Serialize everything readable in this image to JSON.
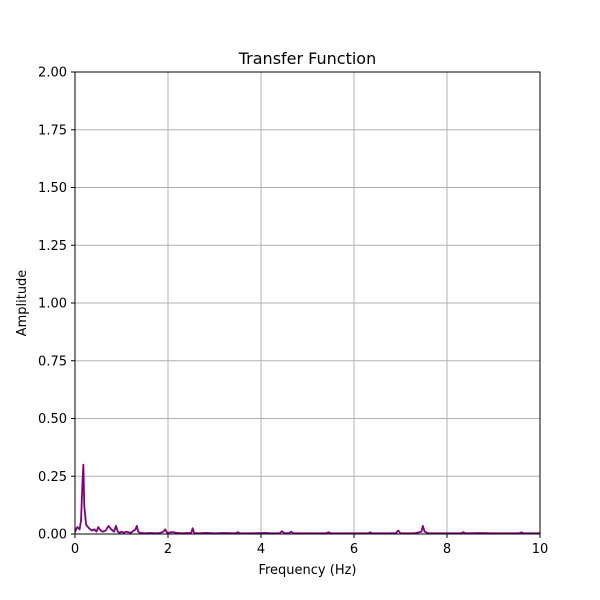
{
  "chart_data": {
    "type": "line",
    "title": "Transfer Function",
    "xlabel": "Frequency (Hz)",
    "ylabel": "Amplitude",
    "xlim": [
      0,
      10
    ],
    "ylim": [
      0,
      2
    ],
    "grid": true,
    "x_ticks": [
      0,
      2,
      4,
      6,
      8,
      10
    ],
    "x_tick_labels": [
      "0",
      "2",
      "4",
      "6",
      "8",
      "10"
    ],
    "y_ticks": [
      0,
      0.25,
      0.5,
      0.75,
      1.0,
      1.25,
      1.5,
      1.75,
      2.0
    ],
    "y_tick_labels": [
      "0.00",
      "0.25",
      "0.50",
      "0.75",
      "1.00",
      "1.25",
      "1.50",
      "1.75",
      "2.00"
    ],
    "series": [
      {
        "color": "#800080",
        "x": [
          0.0,
          0.05,
          0.1,
          0.13,
          0.16,
          0.18,
          0.2,
          0.24,
          0.3,
          0.36,
          0.42,
          0.46,
          0.5,
          0.55,
          0.6,
          0.66,
          0.72,
          0.78,
          0.84,
          0.88,
          0.92,
          0.96,
          1.0,
          1.05,
          1.1,
          1.2,
          1.3,
          1.33,
          1.36,
          1.4,
          1.5,
          1.6,
          1.8,
          1.9,
          1.94,
          1.98,
          2.1,
          2.2,
          2.3,
          2.4,
          2.5,
          2.53,
          2.56,
          2.65,
          2.8,
          3.0,
          3.2,
          3.45,
          3.5,
          3.55,
          3.8,
          4.1,
          4.2,
          4.4,
          4.45,
          4.5,
          4.6,
          4.65,
          4.7,
          5.0,
          5.4,
          5.45,
          5.5,
          5.8,
          6.3,
          6.35,
          6.4,
          6.9,
          6.95,
          7.0,
          7.3,
          7.45,
          7.48,
          7.52,
          7.6,
          7.7,
          8.0,
          8.3,
          8.35,
          8.4,
          8.7,
          9.0,
          9.2,
          9.55,
          9.6,
          9.65,
          10.0
        ],
        "y": [
          0.01,
          0.03,
          0.02,
          0.06,
          0.22,
          0.3,
          0.12,
          0.04,
          0.025,
          0.015,
          0.02,
          0.01,
          0.03,
          0.015,
          0.01,
          0.015,
          0.035,
          0.02,
          0.01,
          0.035,
          0.01,
          0.005,
          0.01,
          0.005,
          0.01,
          0.005,
          0.02,
          0.035,
          0.01,
          0.005,
          0.003,
          0.004,
          0.003,
          0.01,
          0.02,
          0.005,
          0.008,
          0.005,
          0.003,
          0.004,
          0.005,
          0.025,
          0.005,
          0.003,
          0.005,
          0.003,
          0.004,
          0.003,
          0.008,
          0.003,
          0.003,
          0.005,
          0.003,
          0.003,
          0.012,
          0.004,
          0.003,
          0.01,
          0.003,
          0.003,
          0.003,
          0.008,
          0.003,
          0.003,
          0.003,
          0.007,
          0.003,
          0.003,
          0.015,
          0.003,
          0.003,
          0.01,
          0.035,
          0.01,
          0.003,
          0.003,
          0.003,
          0.003,
          0.008,
          0.003,
          0.004,
          0.003,
          0.003,
          0.003,
          0.007,
          0.003,
          0.003
        ]
      }
    ]
  }
}
